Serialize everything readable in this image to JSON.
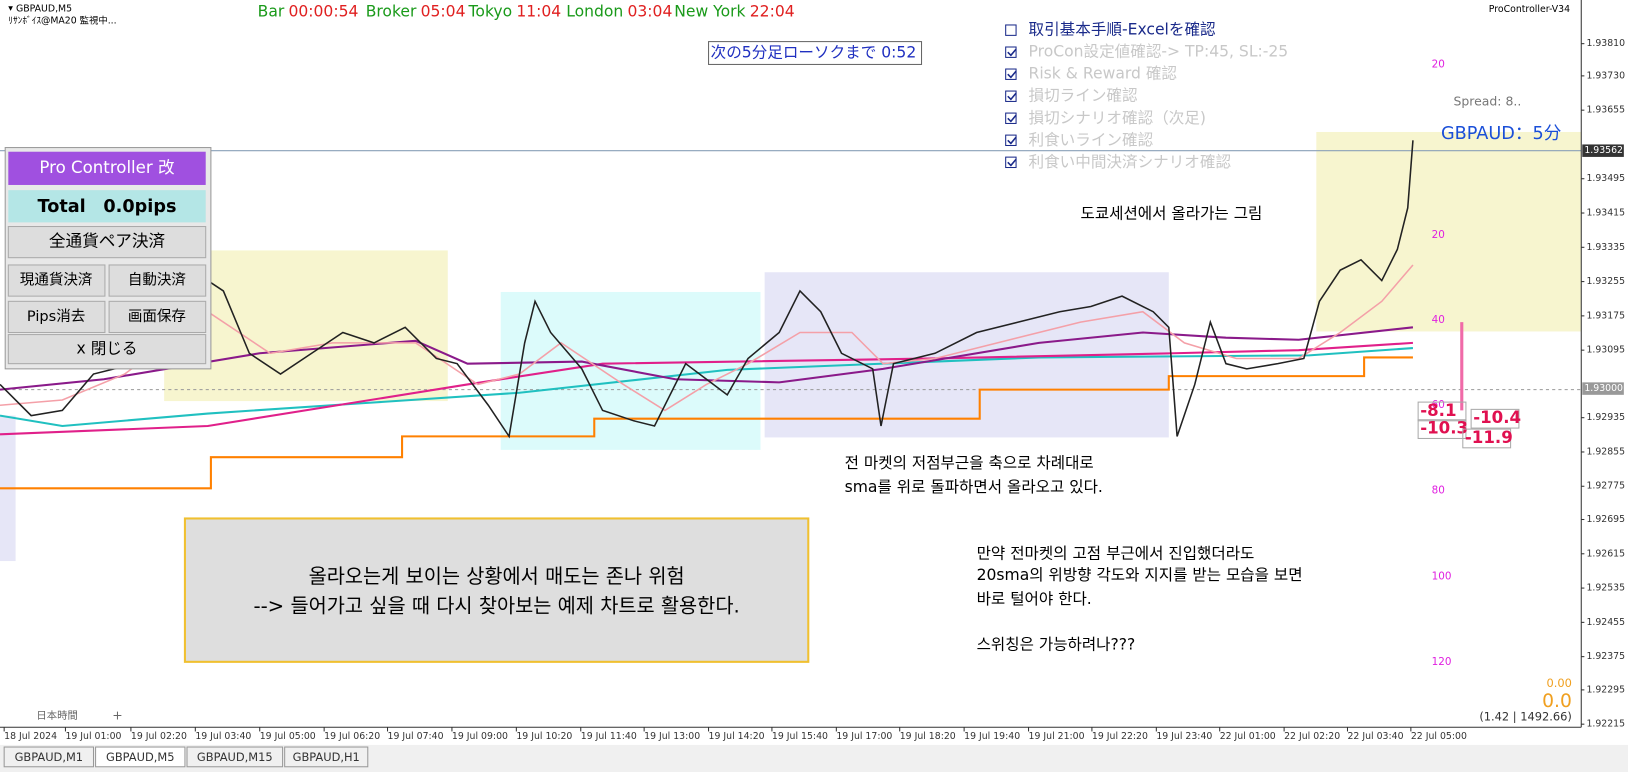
{
  "header": {
    "symbol": "GBPAUD,M5",
    "indicator": "ﾘｻﾝﾎﾞｲｽ@MA20 監視中...",
    "timers": [
      {
        "label": "Bar",
        "value": "00:00:54"
      },
      {
        "label": "Broker",
        "value": "05:04"
      },
      {
        "label": "Tokyo",
        "value": "11:04"
      },
      {
        "label": "London",
        "value": "03:04"
      },
      {
        "label": "New York",
        "value": "22:04"
      }
    ],
    "countdown": "次の5分足ローソクまで 0:52",
    "version": "ProController-V34"
  },
  "checklist": [
    "取引基本手順-Excelを確認",
    "ProCon設定値確認-> TP:45, SL:-25",
    "Risk & Reward 確認",
    "損切ライン確認",
    "損切シナリオ確認（次足)",
    "利食いライン確認",
    "利食い中間決済シナリオ確認"
  ],
  "panel": {
    "title": "Pro Controller 改",
    "total": "Total　0.0pips",
    "close_all": "全通貨ペア決済",
    "buttons": [
      "現通貨決済",
      "自動決済",
      "Pips消去",
      "画面保存"
    ],
    "close": "x 閉じる"
  },
  "chart": {
    "pair_label": "GBPAUD：5分",
    "spread": "Spread: 8..",
    "current_price": "1.93562",
    "line_price": "1.93000",
    "price_labels": [
      "1.93810",
      "1.93730",
      "1.93655",
      "1.93495",
      "1.93415",
      "1.93335",
      "1.93255",
      "1.93175",
      "1.93095",
      "1.92935",
      "1.92855",
      "1.92775",
      "1.92695",
      "1.92615",
      "1.92535",
      "1.92455",
      "1.92375",
      "1.92295",
      "1.92215"
    ],
    "time_labels": [
      "18 Jul 2024",
      "19 Jul 01:00",
      "19 Jul 02:20",
      "19 Jul 03:40",
      "19 Jul 05:00",
      "19 Jul 06:20",
      "19 Jul 07:40",
      "19 Jul 09:00",
      "19 Jul 10:20",
      "19 Jul 11:40",
      "19 Jul 13:00",
      "19 Jul 14:20",
      "19 Jul 15:40",
      "19 Jul 17:00",
      "19 Jul 18:20",
      "19 Jul 19:40",
      "19 Jul 21:00",
      "19 Jul 22:20",
      "19 Jul 23:40",
      "22 Jul 01:00",
      "22 Jul 02:20",
      "22 Jul 03:40",
      "22 Jul 05:00"
    ],
    "pip_levels": [
      "20",
      "20",
      "40",
      "60",
      "80",
      "100",
      "120"
    ],
    "pip_values": [
      "-8.1",
      "-10.3",
      "-10.4",
      "-11.9"
    ],
    "profit_small": "0.00",
    "profit": "0.0",
    "balance": "(1.42 | 1492.66)",
    "timezone": "日本時間",
    "add": "+"
  },
  "annotations": {
    "tokyo": "도쿄세션에서 올라가는 그림",
    "market": [
      "전 마켓의 저점부근을 축으로 차례대로",
      "sma를 위로 돌파하면서 올라오고 있다."
    ],
    "box": [
      "올라오는게 보이는 상황에서 매도는 존나 위험",
      "--> 들어가고 싶을 때 다시 찾아보는 예제 차트로 활용한다."
    ],
    "note": [
      "만약 전마켓의 고점 부근에서 진입했더라도",
      "20sma의 위방향 각도와 지지를 받는 모습을 보면",
      "바로 털어야 한다.",
      "스위칭은 가능하려나???"
    ]
  },
  "tabs": [
    "GBPAUD,M1",
    "GBPAUD,M5",
    "GBPAUD,M15",
    "GBPAUD,H1"
  ]
}
